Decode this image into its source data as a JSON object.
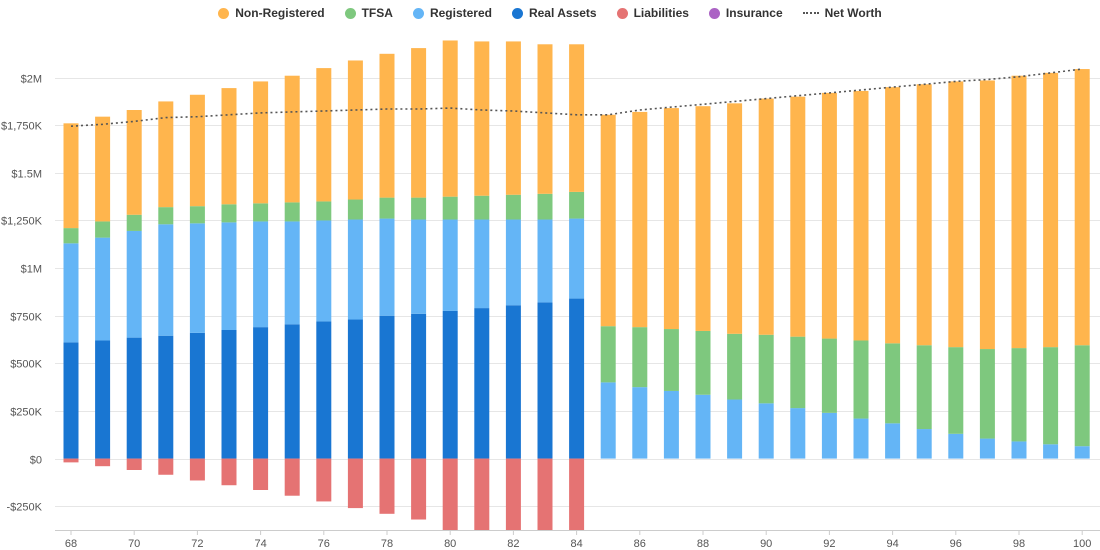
{
  "chart_data": {
    "type": "bar",
    "stacked": true,
    "title": "",
    "xlabel": "",
    "ylabel": "",
    "ylim": [
      -375000,
      2250000
    ],
    "y_ticks": [
      -250000,
      0,
      250000,
      500000,
      750000,
      1000000,
      1250000,
      1500000,
      1750000,
      2000000
    ],
    "y_tick_labels": [
      "-$250K",
      "$0",
      "$250K",
      "$500K",
      "$750K",
      "$1M",
      "$1,250K",
      "$1.5M",
      "$1,750K",
      "$2M"
    ],
    "x_ticks": [
      68,
      70,
      72,
      74,
      76,
      78,
      80,
      82,
      84,
      86,
      88,
      90,
      92,
      94,
      96,
      98,
      100
    ],
    "categories": [
      68,
      69,
      70,
      71,
      72,
      73,
      74,
      75,
      76,
      77,
      78,
      79,
      80,
      81,
      82,
      83,
      84,
      85,
      86,
      87,
      88,
      89,
      90,
      91,
      92,
      93,
      94,
      95,
      96,
      97,
      98,
      99,
      100
    ],
    "legend_position": "top",
    "series": [
      {
        "name": "Non-Registered",
        "color": "#FFB54D",
        "values": [
          550000,
          550000,
          550000,
          555000,
          585000,
          610000,
          640000,
          665000,
          700000,
          730000,
          755000,
          785000,
          820000,
          810000,
          805000,
          785000,
          775000,
          1110000,
          1130000,
          1160000,
          1180000,
          1210000,
          1240000,
          1260000,
          1290000,
          1310000,
          1345000,
          1370000,
          1395000,
          1410000,
          1430000,
          1440000,
          1450000
        ]
      },
      {
        "name": "TFSA",
        "color": "#7EC87E",
        "values": [
          80000,
          85000,
          85000,
          90000,
          90000,
          95000,
          95000,
          100000,
          100000,
          105000,
          110000,
          115000,
          120000,
          125000,
          130000,
          135000,
          140000,
          295000,
          315000,
          325000,
          335000,
          345000,
          360000,
          375000,
          390000,
          410000,
          420000,
          440000,
          455000,
          470000,
          490000,
          510000,
          530000
        ]
      },
      {
        "name": "Registered",
        "color": "#64B5F6",
        "values": [
          520000,
          540000,
          560000,
          585000,
          575000,
          565000,
          555000,
          540000,
          530000,
          525000,
          510000,
          495000,
          480000,
          465000,
          450000,
          435000,
          420000,
          400000,
          375000,
          355000,
          335000,
          310000,
          290000,
          265000,
          240000,
          210000,
          185000,
          155000,
          130000,
          105000,
          90000,
          75000,
          65000
        ]
      },
      {
        "name": "Real Assets",
        "color": "#1976D2",
        "values": [
          610000,
          620000,
          635000,
          645000,
          660000,
          675000,
          690000,
          705000,
          720000,
          730000,
          750000,
          760000,
          775000,
          790000,
          805000,
          820000,
          840000,
          0,
          0,
          0,
          0,
          0,
          0,
          0,
          0,
          0,
          0,
          0,
          0,
          0,
          0,
          0,
          0
        ]
      },
      {
        "name": "Liabilities",
        "color": "#E57373",
        "values": [
          -20000,
          -40000,
          -60000,
          -85000,
          -115000,
          -140000,
          -165000,
          -195000,
          -225000,
          -260000,
          -290000,
          -320000,
          -375000,
          -375000,
          -375000,
          -375000,
          -375000,
          0,
          0,
          0,
          0,
          0,
          0,
          0,
          0,
          0,
          0,
          0,
          0,
          0,
          0,
          0,
          0
        ]
      },
      {
        "name": "Insurance",
        "color": "#AB63C4",
        "values": [
          0,
          0,
          0,
          0,
          0,
          0,
          0,
          0,
          0,
          0,
          0,
          0,
          0,
          0,
          0,
          0,
          0,
          0,
          0,
          0,
          0,
          0,
          0,
          0,
          0,
          0,
          0,
          0,
          0,
          0,
          0,
          0,
          0
        ]
      }
    ],
    "net_worth": {
      "name": "Net Worth",
      "color": "#555555",
      "values": [
        1745000,
        1755000,
        1770000,
        1790000,
        1795000,
        1805000,
        1815000,
        1820000,
        1825000,
        1830000,
        1835000,
        1835000,
        1840000,
        1830000,
        1825000,
        1815000,
        1805000,
        1805000,
        1830000,
        1845000,
        1860000,
        1875000,
        1890000,
        1905000,
        1920000,
        1935000,
        1950000,
        1965000,
        1980000,
        1990000,
        2005000,
        2025000,
        2045000
      ]
    }
  }
}
